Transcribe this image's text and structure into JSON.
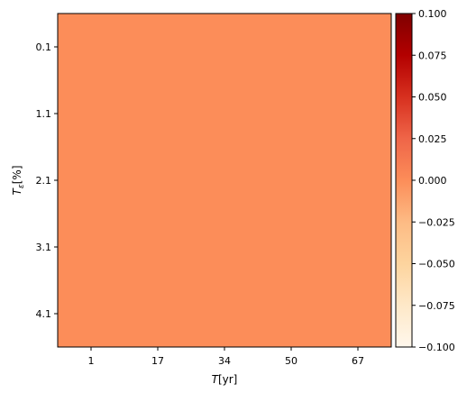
{
  "chart_data": {
    "type": "heatmap",
    "xlabel_symbol": "T",
    "xlabel_unit": "[yr]",
    "ylabel_symbol": "T",
    "ylabel_sub": "ε",
    "ylabel_unit": "[%]",
    "x_ticks": [
      "1",
      "17",
      "34",
      "50",
      "67"
    ],
    "y_ticks": [
      "0.1",
      "1.1",
      "2.1",
      "3.1",
      "4.1"
    ],
    "values_description_fill": "#fc8d59",
    "value": 0.0,
    "colorbar": {
      "colormap": "OrRd",
      "min": -0.1,
      "max": 0.1,
      "ticks": [
        "0.100",
        "0.075",
        "0.050",
        "0.025",
        "0.000",
        "−0.025",
        "−0.050",
        "−0.075",
        "−0.100"
      ],
      "tick_values": [
        0.1,
        0.075,
        0.05,
        0.025,
        0.0,
        -0.025,
        -0.05,
        -0.075,
        -0.1
      ],
      "stops": [
        "#fff7ec",
        "#fee8c8",
        "#fdd49e",
        "#fdbb84",
        "#fc8d59",
        "#ef6548",
        "#d7301f",
        "#b30000",
        "#7f0000"
      ]
    }
  }
}
